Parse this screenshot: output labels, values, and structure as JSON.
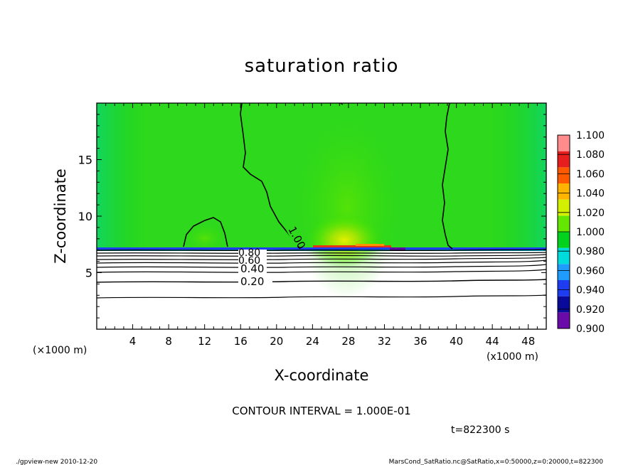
{
  "chart_data": {
    "type": "heatmap",
    "title": "saturation ratio",
    "xlabel": "X-coordinate",
    "ylabel": "Z-coordinate",
    "x_unit_label": "(×1000 m)",
    "x_unit_label_right": "(x1000 m)",
    "xlim": [
      0,
      50
    ],
    "ylim": [
      0,
      20
    ],
    "x_ticks": [
      4,
      8,
      12,
      16,
      20,
      24,
      28,
      32,
      36,
      40,
      44,
      48
    ],
    "y_ticks": [
      5,
      10,
      15
    ],
    "colorbar": {
      "levels": [
        0.9,
        0.92,
        0.94,
        0.96,
        0.98,
        1.0,
        1.02,
        1.04,
        1.06,
        1.08,
        1.1
      ],
      "labels": [
        "0.900",
        "0.920",
        "0.940",
        "0.960",
        "0.980",
        "1.000",
        "1.020",
        "1.040",
        "1.060",
        "1.080",
        "1.100"
      ],
      "colors": [
        "#6a0aa8",
        "#0a0a9a",
        "#1e3cf0",
        "#1e9cff",
        "#00dcdc",
        "#00d21e",
        "#64e600",
        "#d2f000",
        "#ffb400",
        "#ff5a00",
        "#e61e1e",
        "#ff8c8c"
      ]
    },
    "contour_labels": [
      {
        "text": "1.00",
        "x": 20.5,
        "y": 8.4
      },
      {
        "text": "0.80",
        "x": 17.5,
        "y": 7.0
      },
      {
        "text": "0.60",
        "x": 17.5,
        "y": 6.4
      },
      {
        "text": "0.40",
        "x": 17.5,
        "y": 5.6
      },
      {
        "text": "0.20",
        "x": 17.5,
        "y": 4.3
      }
    ],
    "contour_interval_text": "CONTOUR INTERVAL = 1.000E-01",
    "time_text": "t=822300 s"
  },
  "footer": {
    "left": "./gpview-new  2010-12-20",
    "right": "MarsCond_SatRatio.nc@SatRatio,x=0:50000,z=0:20000,t=822300"
  }
}
